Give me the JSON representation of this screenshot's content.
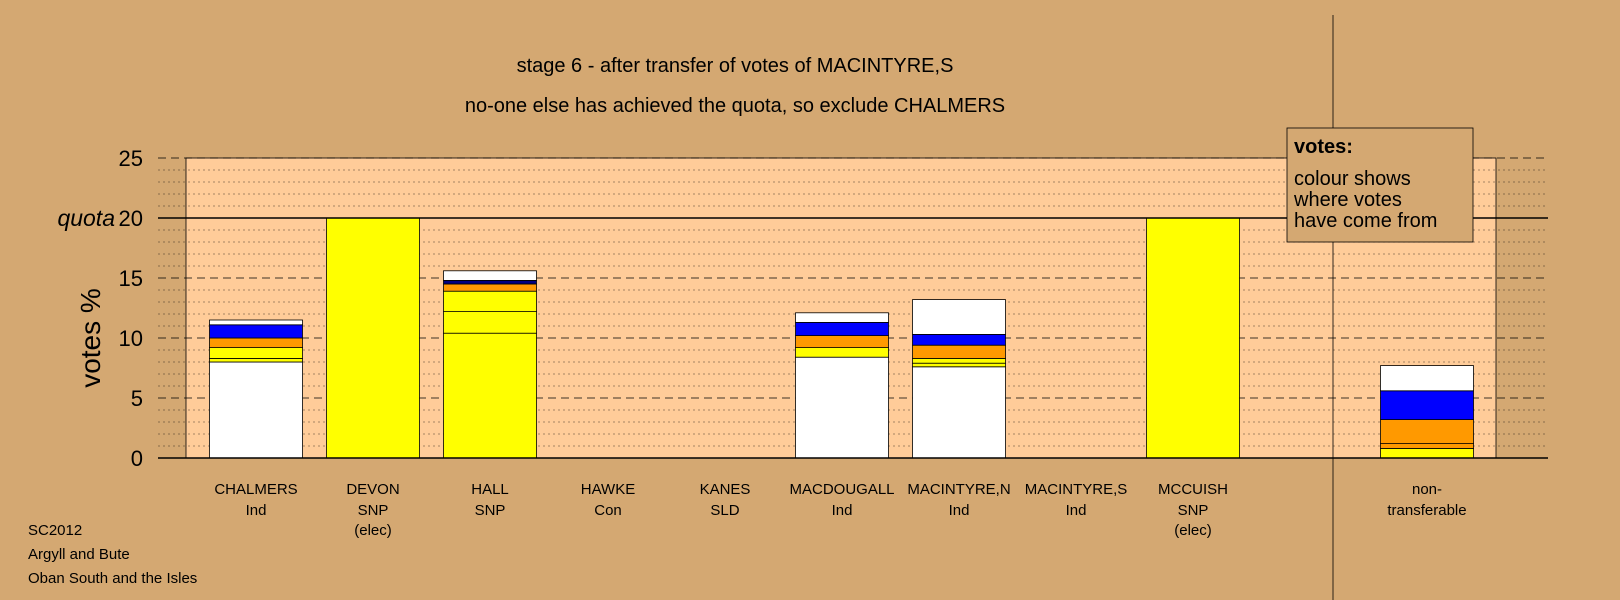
{
  "title": "stage 6 - after transfer of votes of MACINTYRE,S",
  "subtitle": "no-one else has achieved the quota, so exclude CHALMERS",
  "legend": {
    "heading": "votes:",
    "lines": [
      "colour shows",
      "where votes",
      "have come from"
    ]
  },
  "footer": {
    "line1": "SC2012",
    "line2": "Argyll and Bute",
    "line3": "Oban South and the Isles"
  },
  "colors": {
    "background": "#d4a872",
    "plot_area": "#ffcc99",
    "white": "#ffffff",
    "yellow": "#ffff00",
    "orange": "#ff9900",
    "blue": "#0000ff",
    "navy": "#000080"
  },
  "chart_data": {
    "type": "bar",
    "stacked": true,
    "ylabel": "votes %",
    "ylim": [
      0,
      25
    ],
    "yticks": [
      "0",
      "5",
      "10",
      "15",
      "20",
      "25"
    ],
    "quota_label": "quota",
    "quota": 20,
    "candidates": [
      {
        "name": "CHALMERS",
        "party": "Ind",
        "note": "",
        "segments": [
          {
            "color": "white",
            "value": 8.0
          },
          {
            "color": "yellow",
            "value": 0.3
          },
          {
            "color": "yellow",
            "value": 0.9
          },
          {
            "color": "orange",
            "value": 0.8
          },
          {
            "color": "blue",
            "value": 1.1
          },
          {
            "color": "white",
            "value": 0.4
          }
        ]
      },
      {
        "name": "DEVON",
        "party": "SNP",
        "note": "(elec)",
        "segments": [
          {
            "color": "yellow",
            "value": 20.0
          }
        ]
      },
      {
        "name": "HALL",
        "party": "SNP",
        "note": "",
        "segments": [
          {
            "color": "yellow",
            "value": 10.4
          },
          {
            "color": "yellow",
            "value": 1.8
          },
          {
            "color": "yellow",
            "value": 1.7
          },
          {
            "color": "orange",
            "value": 0.6
          },
          {
            "color": "navy",
            "value": 0.3
          },
          {
            "color": "white",
            "value": 0.8
          }
        ]
      },
      {
        "name": "HAWKE",
        "party": "Con",
        "note": "",
        "segments": []
      },
      {
        "name": "KANES",
        "party": "SLD",
        "note": "",
        "segments": []
      },
      {
        "name": "MACDOUGALL",
        "party": "Ind",
        "note": "",
        "segments": [
          {
            "color": "white",
            "value": 8.4
          },
          {
            "color": "yellow",
            "value": 0.8
          },
          {
            "color": "orange",
            "value": 1.0
          },
          {
            "color": "blue",
            "value": 1.1
          },
          {
            "color": "white",
            "value": 0.8
          }
        ]
      },
      {
        "name": "MACINTYRE,N",
        "party": "Ind",
        "note": "",
        "segments": [
          {
            "color": "white",
            "value": 7.6
          },
          {
            "color": "yellow",
            "value": 0.3
          },
          {
            "color": "yellow",
            "value": 0.4
          },
          {
            "color": "orange",
            "value": 1.1
          },
          {
            "color": "blue",
            "value": 0.9
          },
          {
            "color": "white",
            "value": 2.9
          }
        ]
      },
      {
        "name": "MACINTYRE,S",
        "party": "Ind",
        "note": "",
        "segments": []
      },
      {
        "name": "MCCUISH",
        "party": "SNP",
        "note": "(elec)",
        "segments": [
          {
            "color": "yellow",
            "value": 20.0
          }
        ]
      }
    ],
    "non_transferable": {
      "name": "non-",
      "party": "transferable",
      "segments": [
        {
          "color": "yellow",
          "value": 0.8
        },
        {
          "color": "orange",
          "value": 0.4
        },
        {
          "color": "orange",
          "value": 2.0
        },
        {
          "color": "blue",
          "value": 2.4
        },
        {
          "color": "white",
          "value": 2.1
        }
      ]
    }
  }
}
